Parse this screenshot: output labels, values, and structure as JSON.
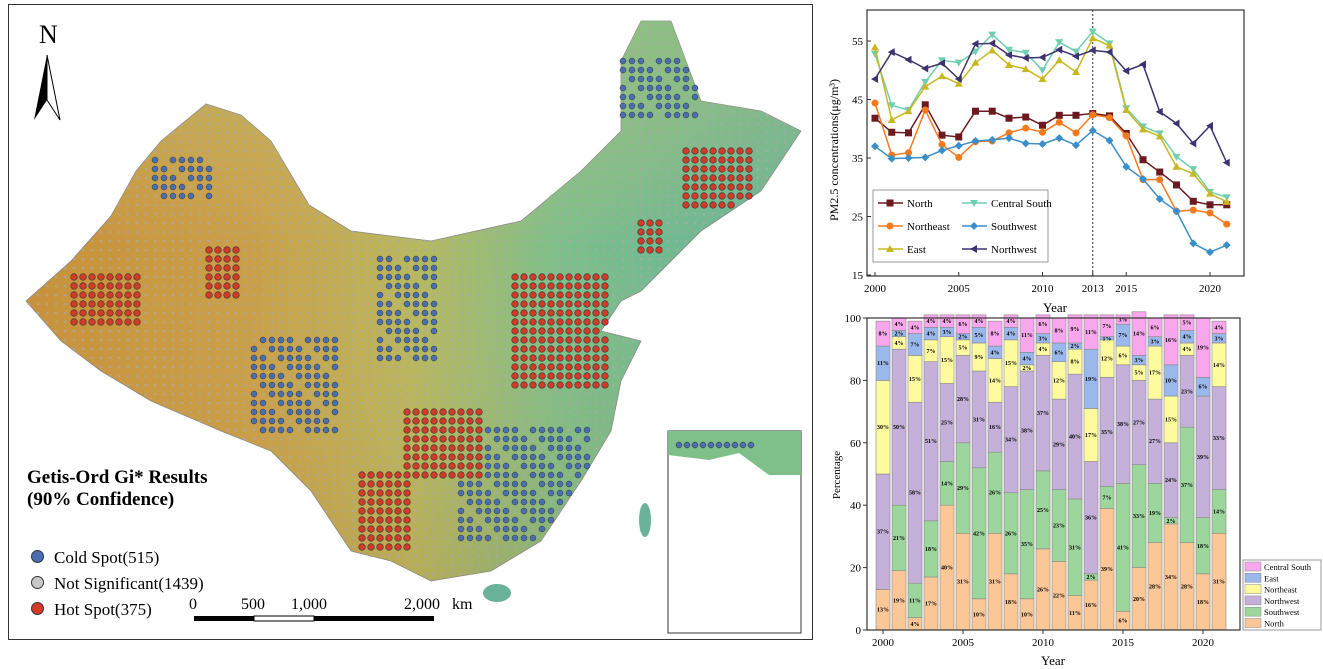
{
  "map": {
    "north_label": "N",
    "legend_title_1": "Getis-Ord Gi* Results",
    "legend_title_2": "(90% Confidence)",
    "legend_items": [
      {
        "label": "Cold Spot(515)",
        "color": "#4a6fb0"
      },
      {
        "label": "Not Significant(1439)",
        "color": "#c8c8c8"
      },
      {
        "label": "Hot Spot(375)",
        "color": "#d23a2a"
      }
    ],
    "scale_labels": [
      "0",
      "500",
      "1,000",
      "2,000"
    ],
    "scale_unit": "km"
  },
  "chart_data": [
    {
      "type": "line",
      "title": "",
      "xlabel": "Year",
      "ylabel": "PM2.5 concentrations(μg/m³)",
      "ylim": [
        15,
        60
      ],
      "yticks": [
        15,
        25,
        35,
        45,
        55
      ],
      "xticks": [
        2000,
        2005,
        2010,
        2013,
        2015,
        2020
      ],
      "annotation": "dashed vertical line at 2013",
      "legend_position": "bottom-left",
      "x": [
        2000,
        2001,
        2002,
        2003,
        2004,
        2005,
        2006,
        2007,
        2008,
        2009,
        2010,
        2011,
        2012,
        2013,
        2014,
        2015,
        2016,
        2017,
        2018,
        2019,
        2020,
        2021
      ],
      "series": [
        {
          "name": "North",
          "color": "#6b1a1f",
          "marker": "square",
          "values": [
            41.8,
            39.4,
            39.3,
            44.1,
            38.9,
            38.6,
            43,
            43,
            41.8,
            42,
            40.6,
            42.3,
            42.3,
            42.6,
            42.2,
            39.2,
            34.7,
            32.6,
            30.4,
            27.6,
            27,
            27
          ]
        },
        {
          "name": "Central South",
          "color": "#6fcfb0",
          "marker": "triangle-down",
          "values": [
            52.8,
            44,
            43.2,
            48,
            51.7,
            51.3,
            53.2,
            56.1,
            53.5,
            53,
            50,
            54.8,
            53.2,
            56.6,
            54.6,
            43.5,
            40.4,
            39.2,
            35.2,
            33.1,
            29.2,
            28.3
          ]
        },
        {
          "name": "Northeast",
          "color": "#f57a1e",
          "marker": "circle",
          "values": [
            44.4,
            35.5,
            35.9,
            43.2,
            37.3,
            35.1,
            37.8,
            37.9,
            39.3,
            40.1,
            39.4,
            41.1,
            39.3,
            42.4,
            41.9,
            38.8,
            31.3,
            31.3,
            25.9,
            26.1,
            25.6,
            23.7
          ]
        },
        {
          "name": "Southwest",
          "color": "#3a8fc8",
          "marker": "diamond",
          "values": [
            37,
            34.9,
            35,
            35.1,
            36.3,
            37.1,
            37.9,
            38.1,
            38.4,
            37.5,
            37.4,
            38.4,
            37.2,
            39.7,
            38,
            33.5,
            31.4,
            28,
            25.9,
            20.4,
            18.9,
            20.1
          ]
        },
        {
          "name": "East",
          "color": "#c8b820",
          "marker": "triangle-up",
          "values": [
            53.9,
            41.5,
            43,
            47.2,
            49,
            47.7,
            51.3,
            53.4,
            50.9,
            50.2,
            48.5,
            51.7,
            49.7,
            55.5,
            54.2,
            43.2,
            39.9,
            38.7,
            33.5,
            32.3,
            28.9,
            27.5
          ]
        },
        {
          "name": "Northwest",
          "color": "#3d3370",
          "marker": "triangle-left",
          "values": [
            48.5,
            53.1,
            51.8,
            50.3,
            51.2,
            48.5,
            54.5,
            54.6,
            52.6,
            52.1,
            52.2,
            53.5,
            52.4,
            53.4,
            53.1,
            49.9,
            51,
            42.9,
            40.9,
            37.5,
            40.5,
            34.2
          ]
        }
      ]
    },
    {
      "type": "bar",
      "stacked": true,
      "xlabel": "Year",
      "ylabel": "Percentage",
      "ylim": [
        0,
        100
      ],
      "yticks": [
        0,
        20,
        40,
        60,
        80,
        100
      ],
      "xticks": [
        2000,
        2005,
        2010,
        2015,
        2020
      ],
      "legend_position": "right-bottom",
      "x": [
        2000,
        2001,
        2002,
        2003,
        2004,
        2005,
        2006,
        2007,
        2008,
        2009,
        2010,
        2011,
        2012,
        2013,
        2014,
        2015,
        2016,
        2017,
        2018,
        2019,
        2020,
        2021
      ],
      "series": [
        {
          "name": "North",
          "color": "#fbc797",
          "values": [
            13,
            19,
            4,
            17,
            40,
            31,
            10,
            31,
            18,
            10,
            26,
            22,
            11,
            16,
            39,
            6,
            20,
            28,
            34,
            28,
            18,
            31
          ]
        },
        {
          "name": "Southwest",
          "color": "#9dd69c",
          "values": [
            0,
            21,
            11,
            18,
            14,
            29,
            42,
            26,
            26,
            35,
            25,
            23,
            31,
            2,
            7,
            41,
            33,
            19,
            2,
            37,
            18,
            14
          ]
        },
        {
          "name": "Northwest",
          "color": "#c4b0d8",
          "values": [
            37,
            50,
            58,
            51,
            25,
            28,
            31,
            16,
            34,
            38,
            37,
            29,
            40,
            36,
            35,
            38,
            27,
            27,
            24,
            23,
            39,
            33
          ]
        },
        {
          "name": "Northeast",
          "color": "#fdfb9e",
          "values": [
            30,
            4,
            15,
            7,
            15,
            5,
            9,
            14,
            15,
            2,
            4,
            12,
            8,
            17,
            12,
            6,
            5,
            17,
            15,
            4,
            0,
            14
          ]
        },
        {
          "name": "East",
          "color": "#9ab8ec",
          "values": [
            11,
            2,
            7,
            4,
            3,
            2,
            5,
            4,
            4,
            4,
            3,
            6,
            2,
            19,
            1,
            7,
            3,
            3,
            10,
            4,
            6,
            3
          ]
        },
        {
          "name": "Central South",
          "color": "#f9a7ec",
          "values": [
            8,
            4,
            4,
            4,
            4,
            6,
            4,
            8,
            4,
            11,
            6,
            8,
            9,
            11,
            7,
            3,
            14,
            6,
            16,
            5,
            19,
            4
          ]
        }
      ],
      "legend_order": [
        "Central South",
        "East",
        "Northeast",
        "Northwest",
        "Southwest",
        "North"
      ]
    }
  ]
}
